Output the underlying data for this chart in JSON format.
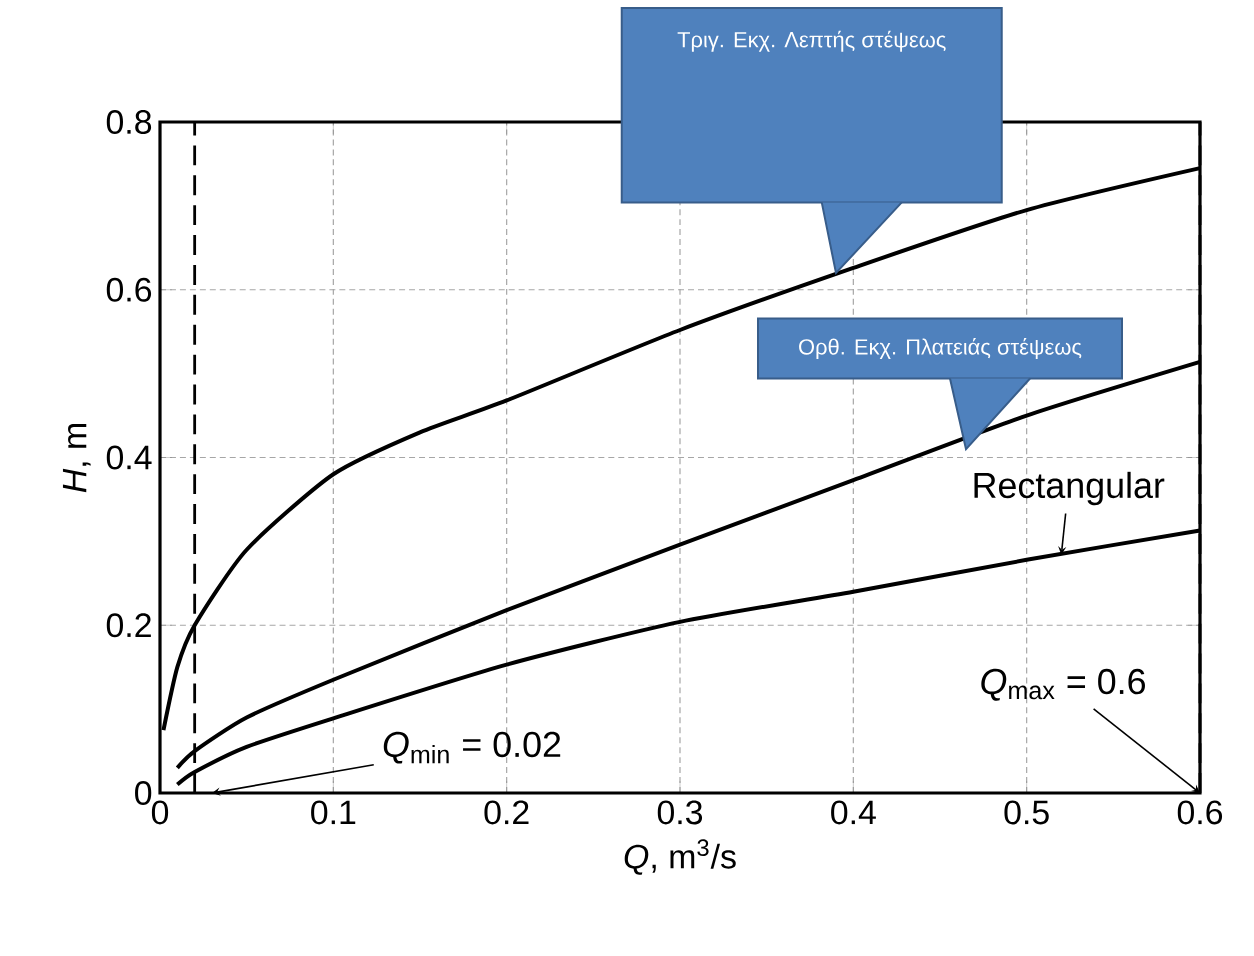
{
  "chart_data": {
    "type": "line",
    "xlabel": "*Q*, m$^{3}$/s",
    "ylabel": "*H*, m",
    "series": [
      {
        "color": "#000000",
        "x": [
          0.002,
          0.01,
          0.02,
          0.05,
          0.1,
          0.15,
          0.2,
          0.3,
          0.4,
          0.5,
          0.6
        ],
        "values": [
          0.075,
          0.15,
          0.2,
          0.29,
          0.38,
          0.43,
          0.468,
          0.552,
          0.626,
          0.695,
          0.745
        ]
      },
      {
        "color": "#000000",
        "x": [
          0.01,
          0.02,
          0.05,
          0.1,
          0.2,
          0.3,
          0.4,
          0.5,
          0.6
        ],
        "values": [
          0.03,
          0.05,
          0.09,
          0.135,
          0.218,
          0.296,
          0.373,
          0.45,
          0.514
        ]
      },
      {
        "color": "#000000",
        "x": [
          0.01,
          0.02,
          0.05,
          0.1,
          0.2,
          0.3,
          0.4,
          0.5,
          0.6
        ],
        "values": [
          0.01,
          0.025,
          0.055,
          0.089,
          0.153,
          0.204,
          0.24,
          0.278,
          0.313
        ]
      }
    ],
    "xlim": [
      0,
      0.6
    ],
    "ylim": [
      0,
      0.8
    ],
    "xticks": [
      0,
      0.1,
      0.2,
      0.3,
      0.4,
      0.5,
      0.6
    ],
    "yticks": [
      0,
      0.2,
      0.4,
      0.6,
      0.8
    ],
    "grid": true,
    "marker": "none",
    "line_style": "solid",
    "ref_lines": [
      {
        "axis": "x",
        "value": 0.02,
        "line_style": "dashed"
      },
      {
        "axis": "x",
        "value": 0.6,
        "line_style": "dashed"
      }
    ],
    "annotations": [
      "Τριγ. Εκχ. Λεπτής στέψεως",
      "Ορθ. Εκχ. Πλατειάς στέψεως",
      {
        "text": "Rectangular",
        "x": 0.52,
        "y": 0.284
      },
      "*Q*$_{min}$ = 0.02",
      {
        "text": "*Q*$_{max}$ = 0.6",
        "x": 0.6,
        "y": 0
      }
    ]
  }
}
